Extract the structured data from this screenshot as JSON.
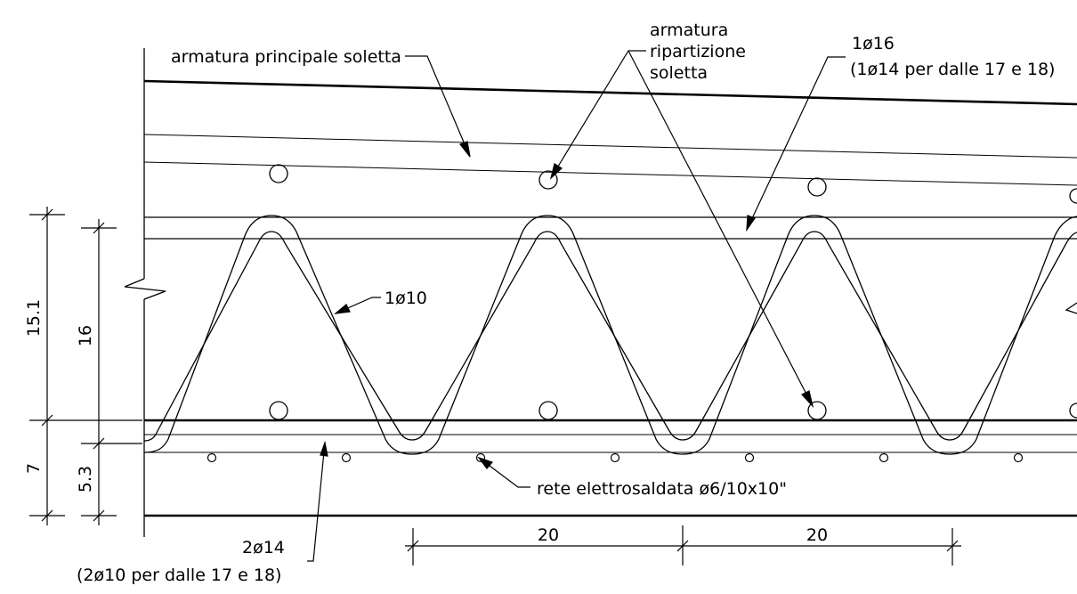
{
  "labels": {
    "main_reinforcement": "armatura principale soletta",
    "distribution_l1": "armatura",
    "distribution_l2": "ripartizione",
    "distribution_l3": "soletta",
    "top_bar_l1": "1ø16",
    "top_bar_l2": "(1ø14 per dalle 17 e 18)",
    "truss_bar": "1ø10",
    "mesh": "rete elettrosaldata ø6/10x10\"",
    "bottom_bar_l1": "2ø14",
    "bottom_bar_l2": "(2ø10 per dalle 17 e 18)"
  },
  "dimensions": {
    "outer_top": "15.1",
    "outer_bottom": "7",
    "inner_top": "16",
    "inner_bottom": "5.3",
    "spacing_1": "20",
    "spacing_2": "20"
  }
}
